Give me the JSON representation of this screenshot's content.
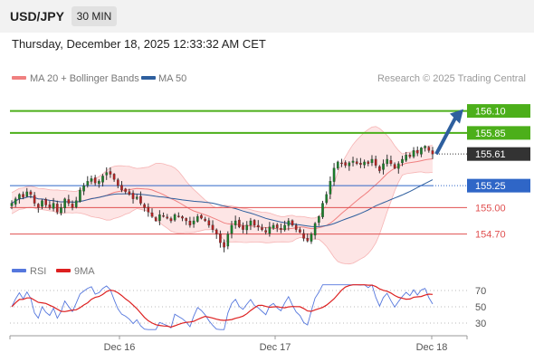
{
  "header": {
    "symbol": "USD/JPY",
    "timeframe": "30 MIN",
    "timestamp": "Thursday, December 18, 2025 12:33:32 AM CET"
  },
  "legend": {
    "bollinger": "MA 20 + Bollinger Bands",
    "ma50": "MA 50",
    "credit": "Research © 2025 Trading Central"
  },
  "colors": {
    "bollinger": "#f08080",
    "bollinger_fill": "#fde2e2",
    "ma50": "#2e5f9e",
    "resistance": "#4caf1a",
    "current": "#333333",
    "pivot": "#2f66c7",
    "support": "#e05050",
    "arrow": "#2e5f9e",
    "rsi": "#5577dd",
    "rsi_ma": "#dd2020"
  },
  "chart_data": [
    {
      "type": "candlestick",
      "xlabels": [
        "Dec 16",
        "Dec 17",
        "Dec 18"
      ],
      "ylim": [
        154.5,
        156.25
      ],
      "grid": false,
      "legend": "top-left",
      "levels": [
        {
          "label": "156.10",
          "value": 156.1,
          "kind": "resistance"
        },
        {
          "label": "155.85",
          "value": 155.85,
          "kind": "resistance"
        },
        {
          "label": "155.61",
          "value": 155.61,
          "kind": "current"
        },
        {
          "label": "155.25",
          "value": 155.25,
          "kind": "pivot"
        },
        {
          "label": "155.00",
          "value": 155.0,
          "kind": "support"
        },
        {
          "label": "154.70",
          "value": 154.7,
          "kind": "support"
        }
      ],
      "projection": {
        "from": 155.61,
        "to": 156.1,
        "direction": "up"
      },
      "closes": [
        155.05,
        155.1,
        155.15,
        155.12,
        155.18,
        155.15,
        155.05,
        155.0,
        155.08,
        155.03,
        155.0,
        155.05,
        154.95,
        155.0,
        155.1,
        155.05,
        155.0,
        155.08,
        155.2,
        155.25,
        155.3,
        155.33,
        155.28,
        155.3,
        155.36,
        155.4,
        155.38,
        155.32,
        155.25,
        155.2,
        155.18,
        155.15,
        155.1,
        155.12,
        155.05,
        155.0,
        154.95,
        154.9,
        154.85,
        154.92,
        154.9,
        154.88,
        154.85,
        154.92,
        154.9,
        154.88,
        154.85,
        154.8,
        154.85,
        154.9,
        154.88,
        154.85,
        154.8,
        154.75,
        154.7,
        154.6,
        154.55,
        154.7,
        154.8,
        154.85,
        154.78,
        154.75,
        154.8,
        154.85,
        154.8,
        154.78,
        154.75,
        154.72,
        154.78,
        154.8,
        154.77,
        154.75,
        154.8,
        154.85,
        154.8,
        154.75,
        154.72,
        154.65,
        154.62,
        154.7,
        154.82,
        154.9,
        155.05,
        155.15,
        155.3,
        155.45,
        155.52,
        155.5,
        155.48,
        155.51,
        155.53,
        155.5,
        155.49,
        155.52,
        155.5,
        155.55,
        155.48,
        155.42,
        155.5,
        155.55,
        155.5,
        155.45,
        155.5,
        155.55,
        155.6,
        155.58,
        155.65,
        155.62,
        155.68,
        155.7,
        155.65,
        155.61
      ]
    },
    {
      "type": "line",
      "series": [
        {
          "name": "RSI"
        },
        {
          "name": "9MA"
        }
      ],
      "ylim": [
        20,
        80
      ],
      "yticks": [
        30,
        50,
        70
      ]
    }
  ]
}
